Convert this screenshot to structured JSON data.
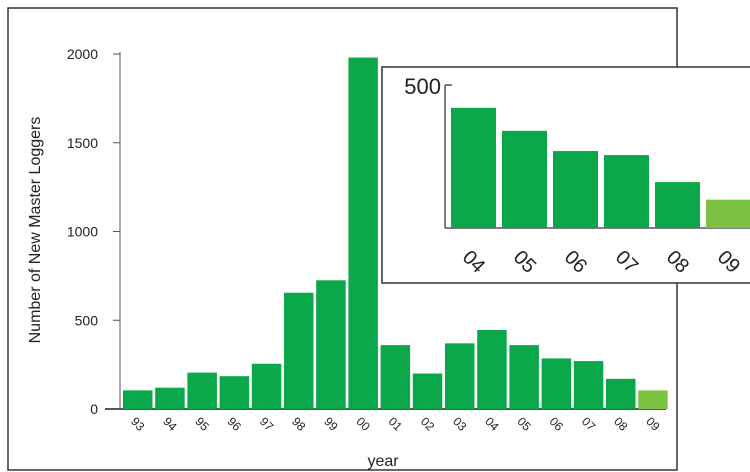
{
  "chart_data": [
    {
      "type": "bar",
      "xlabel": "year",
      "ylabel": "Number of New Master Loggers",
      "categories": [
        "93",
        "94",
        "95",
        "96",
        "97",
        "98",
        "99",
        "00",
        "01",
        "02",
        "03",
        "04",
        "05",
        "06",
        "07",
        "08",
        "09"
      ],
      "values": [
        105,
        120,
        205,
        185,
        255,
        655,
        725,
        1980,
        360,
        200,
        370,
        445,
        360,
        285,
        270,
        170,
        105
      ],
      "ylim": [
        0,
        2000
      ],
      "yticks": [
        0,
        500,
        1000,
        1500,
        2000
      ],
      "colors": {
        "bar": "#0aa84a",
        "highlight": "#7dc242"
      },
      "highlight_category": "09",
      "grid": false
    },
    {
      "type": "bar",
      "xlabel": "",
      "ylabel": "",
      "categories": [
        "04",
        "05",
        "06",
        "07",
        "08",
        "09"
      ],
      "values": [
        445,
        360,
        285,
        270,
        170,
        105
      ],
      "ylim": [
        0,
        500
      ],
      "yticks": [
        500
      ],
      "colors": {
        "bar": "#0aa84a",
        "highlight": "#7dc242"
      },
      "highlight_category": "09",
      "grid": false
    }
  ]
}
